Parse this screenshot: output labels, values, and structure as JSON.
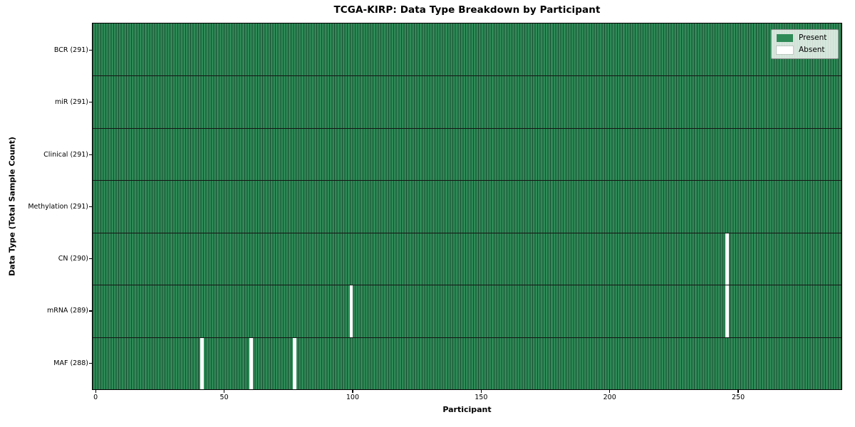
{
  "chart_data": {
    "type": "heatmap",
    "title": "TCGA-KIRP: Data Type Breakdown by Participant",
    "xlabel": "Participant",
    "ylabel": "Data Type (Total Sample Count)",
    "x_ticks": [
      0,
      50,
      100,
      150,
      200,
      250
    ],
    "n_participants": 291,
    "x_range": [
      -0.5,
      290.5
    ],
    "grid": false,
    "legend": {
      "position": "upper right",
      "entries": [
        {
          "label": "Present",
          "color": "#2E8B57"
        },
        {
          "label": "Absent",
          "color": "#FFFFFF"
        }
      ]
    },
    "rows": [
      {
        "label": "BCR (291)",
        "data_type": "BCR",
        "total": 291,
        "absent_participants": []
      },
      {
        "label": "miR (291)",
        "data_type": "miR",
        "total": 291,
        "absent_participants": []
      },
      {
        "label": "Clinical (291)",
        "data_type": "Clinical",
        "total": 291,
        "absent_participants": []
      },
      {
        "label": "Methylation (291)",
        "data_type": "Methylation",
        "total": 291,
        "absent_participants": []
      },
      {
        "label": "CN (290)",
        "data_type": "CN",
        "total": 290,
        "absent_participants": [
          246
        ]
      },
      {
        "label": "mRNA (289)",
        "data_type": "mRNA",
        "total": 289,
        "absent_participants": [
          100,
          246
        ]
      },
      {
        "label": "MAF (288)",
        "data_type": "MAF",
        "total": 288,
        "absent_participants": [
          42,
          61,
          78
        ]
      }
    ],
    "colors": {
      "present": "#2E8B57",
      "absent": "#FFFFFF",
      "cell_edge": "#1B4D31",
      "row_divider": "#141414",
      "spine": "#000000"
    }
  }
}
